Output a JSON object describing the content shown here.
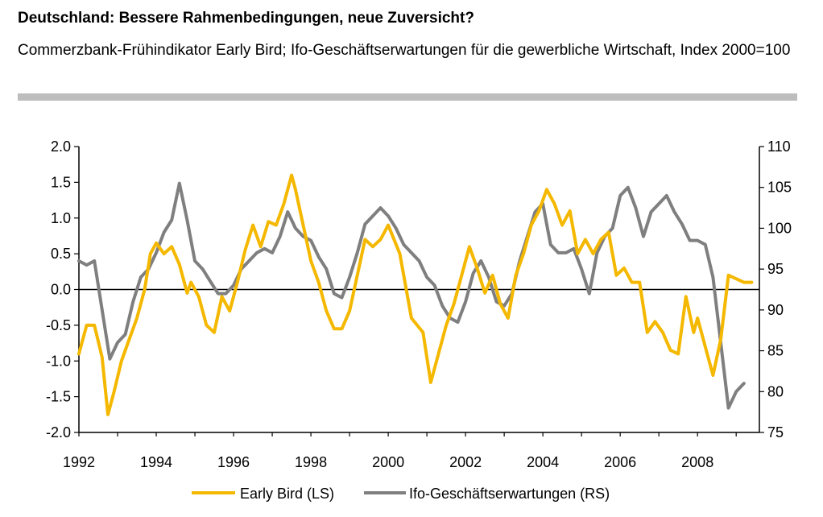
{
  "header": {
    "title": "Deutschland: Bessere Rahmenbedingungen, neue Zuversicht?",
    "subtitle": "Commerzbank-Frühindikator Early Bird; Ifo-Geschäftserwartungen für die gewerbliche Wirtschaft, Index 2000=100"
  },
  "chart_data": {
    "type": "line",
    "title": "Deutschland: Bessere Rahmenbedingungen, neue Zuversicht?",
    "subtitle": "Commerzbank-Frühindikator Early Bird; Ifo-Geschäftserwartungen für die gewerbliche Wirtschaft, Index 2000=100",
    "xlabel": "",
    "x_ticks": [
      "1992",
      "1994",
      "1996",
      "1998",
      "2000",
      "2002",
      "2004",
      "2006",
      "2008"
    ],
    "x_tick_values": [
      1992,
      1994,
      1996,
      1998,
      2000,
      2002,
      2004,
      2006,
      2008
    ],
    "xlim": [
      1992,
      2009.6
    ],
    "y_left": {
      "ylim": [
        -2.0,
        2.0
      ],
      "ticks": [
        "2.0",
        "1.5",
        "1.0",
        "0.5",
        "0.0",
        "-0.5",
        "-1.0",
        "-1.5",
        "-2.0"
      ],
      "tick_values": [
        2.0,
        1.5,
        1.0,
        0.5,
        0.0,
        -0.5,
        -1.0,
        -1.5,
        -2.0
      ]
    },
    "y_right": {
      "ylim": [
        75,
        110
      ],
      "ticks": [
        "110",
        "105",
        "100",
        "95",
        "90",
        "85",
        "80",
        "75"
      ],
      "tick_values": [
        110,
        105,
        100,
        95,
        90,
        85,
        80,
        75
      ]
    },
    "legend_position": "bottom-center",
    "colors": {
      "early_bird": "#f5b800",
      "ifo": "#7f7f7f",
      "axis": "#000000"
    },
    "series": [
      {
        "name": "Early Bird (LS)",
        "axis": "left",
        "x": [
          1992.0,
          1992.2,
          1992.4,
          1992.6,
          1992.75,
          1992.9,
          1993.1,
          1993.3,
          1993.5,
          1993.7,
          1993.85,
          1994.0,
          1994.2,
          1994.4,
          1994.6,
          1994.8,
          1994.9,
          1995.1,
          1995.3,
          1995.5,
          1995.7,
          1995.9,
          1996.1,
          1996.3,
          1996.5,
          1996.7,
          1996.9,
          1997.1,
          1997.3,
          1997.5,
          1997.6,
          1997.8,
          1998.0,
          1998.2,
          1998.4,
          1998.6,
          1998.8,
          1999.0,
          1999.2,
          1999.4,
          1999.6,
          1999.8,
          2000.0,
          2000.3,
          2000.6,
          2000.9,
          2001.1,
          2001.3,
          2001.5,
          2001.7,
          2001.9,
          2002.1,
          2002.3,
          2002.5,
          2002.7,
          2002.9,
          2003.1,
          2003.3,
          2003.5,
          2003.7,
          2003.9,
          2004.1,
          2004.3,
          2004.5,
          2004.7,
          2004.9,
          2005.1,
          2005.3,
          2005.5,
          2005.7,
          2005.9,
          2006.1,
          2006.3,
          2006.5,
          2006.7,
          2006.9,
          2007.1,
          2007.3,
          2007.5,
          2007.7,
          2007.9,
          2008.0,
          2008.2,
          2008.4,
          2008.6,
          2008.8,
          2009.0,
          2009.2,
          2009.4
        ],
        "values": [
          -0.9,
          -0.5,
          -0.5,
          -0.95,
          -1.75,
          -1.45,
          -1.0,
          -0.7,
          -0.4,
          0.0,
          0.5,
          0.65,
          0.5,
          0.6,
          0.35,
          -0.05,
          0.1,
          -0.1,
          -0.5,
          -0.6,
          -0.1,
          -0.3,
          0.1,
          0.55,
          0.9,
          0.6,
          0.95,
          0.9,
          1.2,
          1.6,
          1.4,
          0.9,
          0.4,
          0.1,
          -0.3,
          -0.55,
          -0.55,
          -0.3,
          0.2,
          0.7,
          0.6,
          0.7,
          0.9,
          0.5,
          -0.4,
          -0.6,
          -1.3,
          -0.9,
          -0.5,
          -0.2,
          0.2,
          0.6,
          0.3,
          -0.05,
          0.2,
          -0.2,
          -0.4,
          0.2,
          0.5,
          0.9,
          1.1,
          1.4,
          1.2,
          0.9,
          1.1,
          0.5,
          0.7,
          0.5,
          0.7,
          0.8,
          0.2,
          0.3,
          0.1,
          0.1,
          -0.6,
          -0.45,
          -0.6,
          -0.85,
          -0.9,
          -0.1,
          -0.6,
          -0.4,
          -0.8,
          -1.2,
          -0.7,
          0.2,
          0.15,
          0.1,
          0.1
        ]
      },
      {
        "name": "Ifo-Geschäftserwartungen (RS)",
        "axis": "right",
        "x": [
          1992.0,
          1992.2,
          1992.4,
          1992.6,
          1992.8,
          1993.0,
          1993.2,
          1993.4,
          1993.6,
          1993.8,
          1994.0,
          1994.2,
          1994.4,
          1994.6,
          1994.8,
          1995.0,
          1995.2,
          1995.4,
          1995.6,
          1995.8,
          1996.0,
          1996.2,
          1996.4,
          1996.6,
          1996.8,
          1997.0,
          1997.2,
          1997.4,
          1997.6,
          1997.8,
          1998.0,
          1998.2,
          1998.4,
          1998.6,
          1998.8,
          1999.0,
          1999.2,
          1999.4,
          1999.6,
          1999.8,
          2000.0,
          2000.2,
          2000.4,
          2000.6,
          2000.8,
          2001.0,
          2001.2,
          2001.4,
          2001.6,
          2001.8,
          2002.0,
          2002.2,
          2002.4,
          2002.6,
          2002.8,
          2003.0,
          2003.2,
          2003.4,
          2003.6,
          2003.8,
          2004.0,
          2004.2,
          2004.4,
          2004.6,
          2004.8,
          2005.0,
          2005.2,
          2005.4,
          2005.6,
          2005.8,
          2006.0,
          2006.2,
          2006.4,
          2006.6,
          2006.8,
          2007.0,
          2007.2,
          2007.4,
          2007.6,
          2007.8,
          2008.0,
          2008.2,
          2008.4,
          2008.6,
          2008.8,
          2009.0,
          2009.2
        ],
        "values": [
          96,
          95.5,
          96,
          90,
          84,
          86,
          87,
          91,
          94,
          95,
          97,
          99.5,
          101,
          105.5,
          101,
          96,
          95,
          93.5,
          92,
          92,
          93,
          95,
          96,
          97,
          97.5,
          97,
          99,
          102,
          100,
          99,
          98.5,
          96.5,
          95,
          92,
          91.5,
          94,
          97,
          100.5,
          101.5,
          102.5,
          101.5,
          100,
          98,
          97,
          96,
          94,
          93,
          90.5,
          89,
          88.5,
          91,
          94.5,
          96,
          94,
          91,
          90.5,
          92,
          96,
          99,
          102,
          103,
          98,
          97,
          97,
          97.5,
          95,
          92,
          97,
          99,
          100,
          104,
          105,
          102.5,
          99,
          102,
          103,
          104,
          102,
          100.5,
          98.5,
          98.5,
          98,
          94,
          86,
          78,
          80,
          81
        ]
      }
    ]
  }
}
